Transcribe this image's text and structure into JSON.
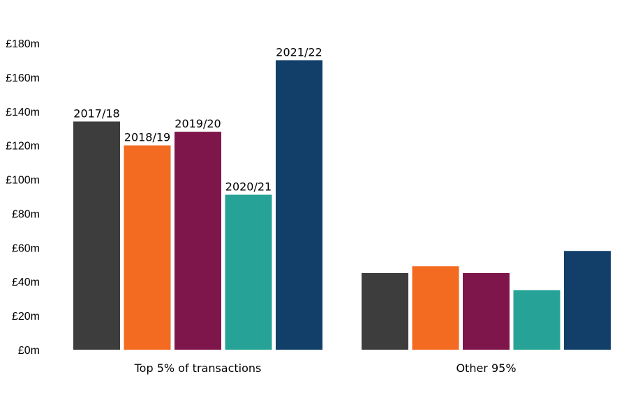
{
  "chart_data": {
    "type": "bar",
    "categories": [
      "Top 5% of transactions",
      "Other 95%"
    ],
    "series": [
      {
        "name": "2017/18",
        "color": "#3d3d3d",
        "values": [
          134,
          45
        ]
      },
      {
        "name": "2018/19",
        "color": "#f26b21",
        "values": [
          120,
          49
        ]
      },
      {
        "name": "2019/20",
        "color": "#7e164c",
        "values": [
          128,
          45
        ]
      },
      {
        "name": "2020/21",
        "color": "#27a296",
        "values": [
          91,
          35
        ]
      },
      {
        "name": "2021/22",
        "color": "#113f6a",
        "values": [
          170,
          58
        ]
      }
    ],
    "series_labels_shown_for_category": 0,
    "ylim": [
      0,
      180
    ],
    "yticks": [
      0,
      20,
      40,
      60,
      80,
      100,
      120,
      140,
      160,
      180
    ],
    "ytick_labels": [
      "£0m",
      "£20m",
      "£40m",
      "£60m",
      "£80m",
      "£100m",
      "£120m",
      "£140m",
      "£160m",
      "£180m"
    ],
    "grid": false,
    "title": "",
    "xlabel": "",
    "ylabel": ""
  }
}
